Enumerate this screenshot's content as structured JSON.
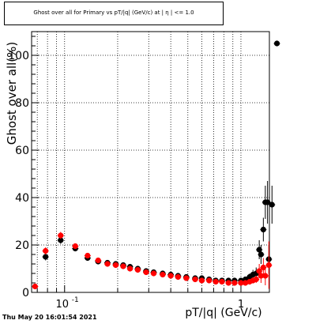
{
  "title": "Ghost over all for Primary vs pT/|q| (GeV/c) at | η | <= 1.0",
  "footer_timestamp": "Thu May 20 16:01:54 2021",
  "chart_data": {
    "type": "scatter",
    "title": "Ghost over all for Primary vs pT/|q| (GeV/c) at | η | <= 1.0",
    "xlabel": "pT/|q| (GeV/c)",
    "ylabel": "Ghost over all(%)",
    "x_scale": "log",
    "xlim": [
      0.065,
      1.45
    ],
    "ylim": [
      0,
      110
    ],
    "x_tick_labels": [
      "10^-1",
      "1"
    ],
    "y_ticks": [
      0,
      20,
      40,
      60,
      80,
      100
    ],
    "grid": true,
    "colors": {
      "black_series": "#000000",
      "red_series": "#ff0000"
    },
    "series": [
      {
        "marker_color": "black",
        "points": [
          {
            "x": 0.078,
            "y": 15.0,
            "ey": 1.5
          },
          {
            "x": 0.095,
            "y": 22.0,
            "ey": 1.5
          },
          {
            "x": 0.115,
            "y": 18.5,
            "ey": 1.0
          },
          {
            "x": 0.135,
            "y": 14.5,
            "ey": 1.0
          },
          {
            "x": 0.155,
            "y": 13.0,
            "ey": 0.8
          },
          {
            "x": 0.175,
            "y": 12.5,
            "ey": 0.8
          },
          {
            "x": 0.195,
            "y": 12.0,
            "ey": 0.7
          },
          {
            "x": 0.215,
            "y": 11.5,
            "ey": 0.7
          },
          {
            "x": 0.235,
            "y": 10.8,
            "ey": 0.7
          },
          {
            "x": 0.26,
            "y": 10.0,
            "ey": 0.6
          },
          {
            "x": 0.29,
            "y": 9.0,
            "ey": 0.6
          },
          {
            "x": 0.32,
            "y": 8.5,
            "ey": 0.6
          },
          {
            "x": 0.36,
            "y": 8.0,
            "ey": 0.6
          },
          {
            "x": 0.4,
            "y": 7.5,
            "ey": 0.6
          },
          {
            "x": 0.44,
            "y": 7.0,
            "ey": 0.6
          },
          {
            "x": 0.49,
            "y": 6.5,
            "ey": 0.6
          },
          {
            "x": 0.55,
            "y": 6.0,
            "ey": 0.6
          },
          {
            "x": 0.6,
            "y": 6.0,
            "ey": 0.6
          },
          {
            "x": 0.66,
            "y": 5.5,
            "ey": 0.6
          },
          {
            "x": 0.72,
            "y": 5.0,
            "ey": 0.6
          },
          {
            "x": 0.78,
            "y": 5.0,
            "ey": 0.6
          },
          {
            "x": 0.85,
            "y": 5.0,
            "ey": 0.7
          },
          {
            "x": 0.92,
            "y": 5.0,
            "ey": 0.7
          },
          {
            "x": 1.0,
            "y": 5.0,
            "ey": 0.8
          },
          {
            "x": 1.06,
            "y": 5.5,
            "ey": 1.0
          },
          {
            "x": 1.12,
            "y": 6.5,
            "ey": 1.5
          },
          {
            "x": 1.17,
            "y": 7.5,
            "ey": 2.0
          },
          {
            "x": 1.22,
            "y": 8.0,
            "ey": 2.5
          },
          {
            "x": 1.27,
            "y": 18.0,
            "ey": 4.0
          },
          {
            "x": 1.3,
            "y": 16.0,
            "ey": 4.0
          },
          {
            "x": 1.34,
            "y": 26.5,
            "ey": 5.0
          },
          {
            "x": 1.375,
            "y": 38.0,
            "ey": 7.0
          },
          {
            "x": 1.415,
            "y": 38.0,
            "ey": 9.0
          },
          {
            "x": 1.44,
            "y": 14.0,
            "ey": 6.0
          },
          {
            "x": 1.5,
            "y": 37.0,
            "ey": 8.0
          },
          {
            "x": 1.6,
            "y": 105.0,
            "ey": 0
          }
        ]
      },
      {
        "marker_color": "red",
        "points": [
          {
            "x": 0.068,
            "y": 2.5,
            "ey": 0.5
          },
          {
            "x": 0.078,
            "y": 17.5,
            "ey": 1.5
          },
          {
            "x": 0.095,
            "y": 24.0,
            "ey": 1.5
          },
          {
            "x": 0.115,
            "y": 19.5,
            "ey": 1.0
          },
          {
            "x": 0.135,
            "y": 15.5,
            "ey": 1.0
          },
          {
            "x": 0.155,
            "y": 13.5,
            "ey": 0.8
          },
          {
            "x": 0.175,
            "y": 12.0,
            "ey": 0.8
          },
          {
            "x": 0.195,
            "y": 11.5,
            "ey": 0.7
          },
          {
            "x": 0.215,
            "y": 11.0,
            "ey": 0.7
          },
          {
            "x": 0.235,
            "y": 10.0,
            "ey": 0.6
          },
          {
            "x": 0.26,
            "y": 9.5,
            "ey": 0.6
          },
          {
            "x": 0.29,
            "y": 8.5,
            "ey": 0.6
          },
          {
            "x": 0.32,
            "y": 8.0,
            "ey": 0.5
          },
          {
            "x": 0.36,
            "y": 7.5,
            "ey": 0.5
          },
          {
            "x": 0.4,
            "y": 7.0,
            "ey": 0.5
          },
          {
            "x": 0.44,
            "y": 6.5,
            "ey": 0.5
          },
          {
            "x": 0.49,
            "y": 6.0,
            "ey": 0.5
          },
          {
            "x": 0.55,
            "y": 5.5,
            "ey": 0.5
          },
          {
            "x": 0.6,
            "y": 5.0,
            "ey": 0.5
          },
          {
            "x": 0.66,
            "y": 5.0,
            "ey": 0.5
          },
          {
            "x": 0.72,
            "y": 4.5,
            "ey": 0.5
          },
          {
            "x": 0.78,
            "y": 4.5,
            "ey": 0.5
          },
          {
            "x": 0.85,
            "y": 4.0,
            "ey": 0.5
          },
          {
            "x": 0.92,
            "y": 4.0,
            "ey": 0.6
          },
          {
            "x": 1.0,
            "y": 4.0,
            "ey": 0.6
          },
          {
            "x": 1.06,
            "y": 4.0,
            "ey": 0.8
          },
          {
            "x": 1.12,
            "y": 4.5,
            "ey": 1.0
          },
          {
            "x": 1.17,
            "y": 5.0,
            "ey": 1.2
          },
          {
            "x": 1.22,
            "y": 5.5,
            "ey": 1.5
          },
          {
            "x": 1.27,
            "y": 9.0,
            "ey": 3.0
          },
          {
            "x": 1.3,
            "y": 7.0,
            "ey": 3.0
          },
          {
            "x": 1.34,
            "y": 10.5,
            "ey": 4.0
          },
          {
            "x": 1.375,
            "y": 7.0,
            "ey": 4.0
          },
          {
            "x": 1.44,
            "y": 11.5,
            "ey": 10.0
          }
        ]
      }
    ]
  }
}
